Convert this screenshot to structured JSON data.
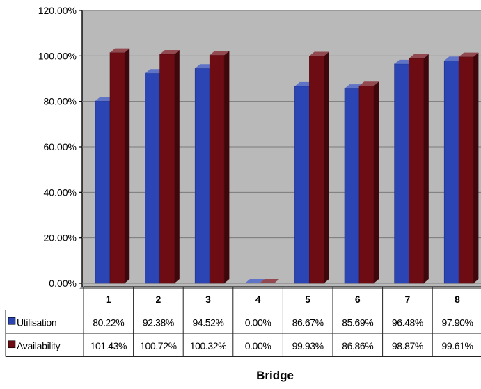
{
  "chart_data": {
    "type": "bar",
    "title": "",
    "xlabel": "Bridge",
    "ylabel": "",
    "categories": [
      "1",
      "2",
      "3",
      "4",
      "5",
      "6",
      "7",
      "8"
    ],
    "ylim": [
      0,
      1.2
    ],
    "yticks": [
      0,
      0.2,
      0.4,
      0.6,
      0.8,
      1.0,
      1.2
    ],
    "ytick_labels": [
      "0.00%",
      "20.00%",
      "40.00%",
      "60.00%",
      "80.00%",
      "100.00%",
      "120.00%"
    ],
    "grid": true,
    "legend": "data-table",
    "series": [
      {
        "name": "Utilisation",
        "color": "#2b45b4",
        "values": [
          0.8022,
          0.9238,
          0.9452,
          0.0,
          0.8667,
          0.8569,
          0.9648,
          0.979
        ],
        "labels": [
          "80.22%",
          "92.38%",
          "94.52%",
          "0.00%",
          "86.67%",
          "85.69%",
          "96.48%",
          "97.90%"
        ]
      },
      {
        "name": "Availability",
        "color": "#6e0c14",
        "values": [
          1.0143,
          1.0072,
          1.0032,
          0.0,
          0.9993,
          0.8686,
          0.9887,
          0.9961
        ],
        "labels": [
          "101.43%",
          "100.72%",
          "100.32%",
          "0.00%",
          "99.93%",
          "86.86%",
          "98.87%",
          "99.61%"
        ]
      }
    ]
  },
  "colors": {
    "plot_background": "#b9b9b9",
    "back_wall": "#a9a9a9",
    "utilisation": "#2b45b4",
    "availability": "#6e0c14"
  }
}
